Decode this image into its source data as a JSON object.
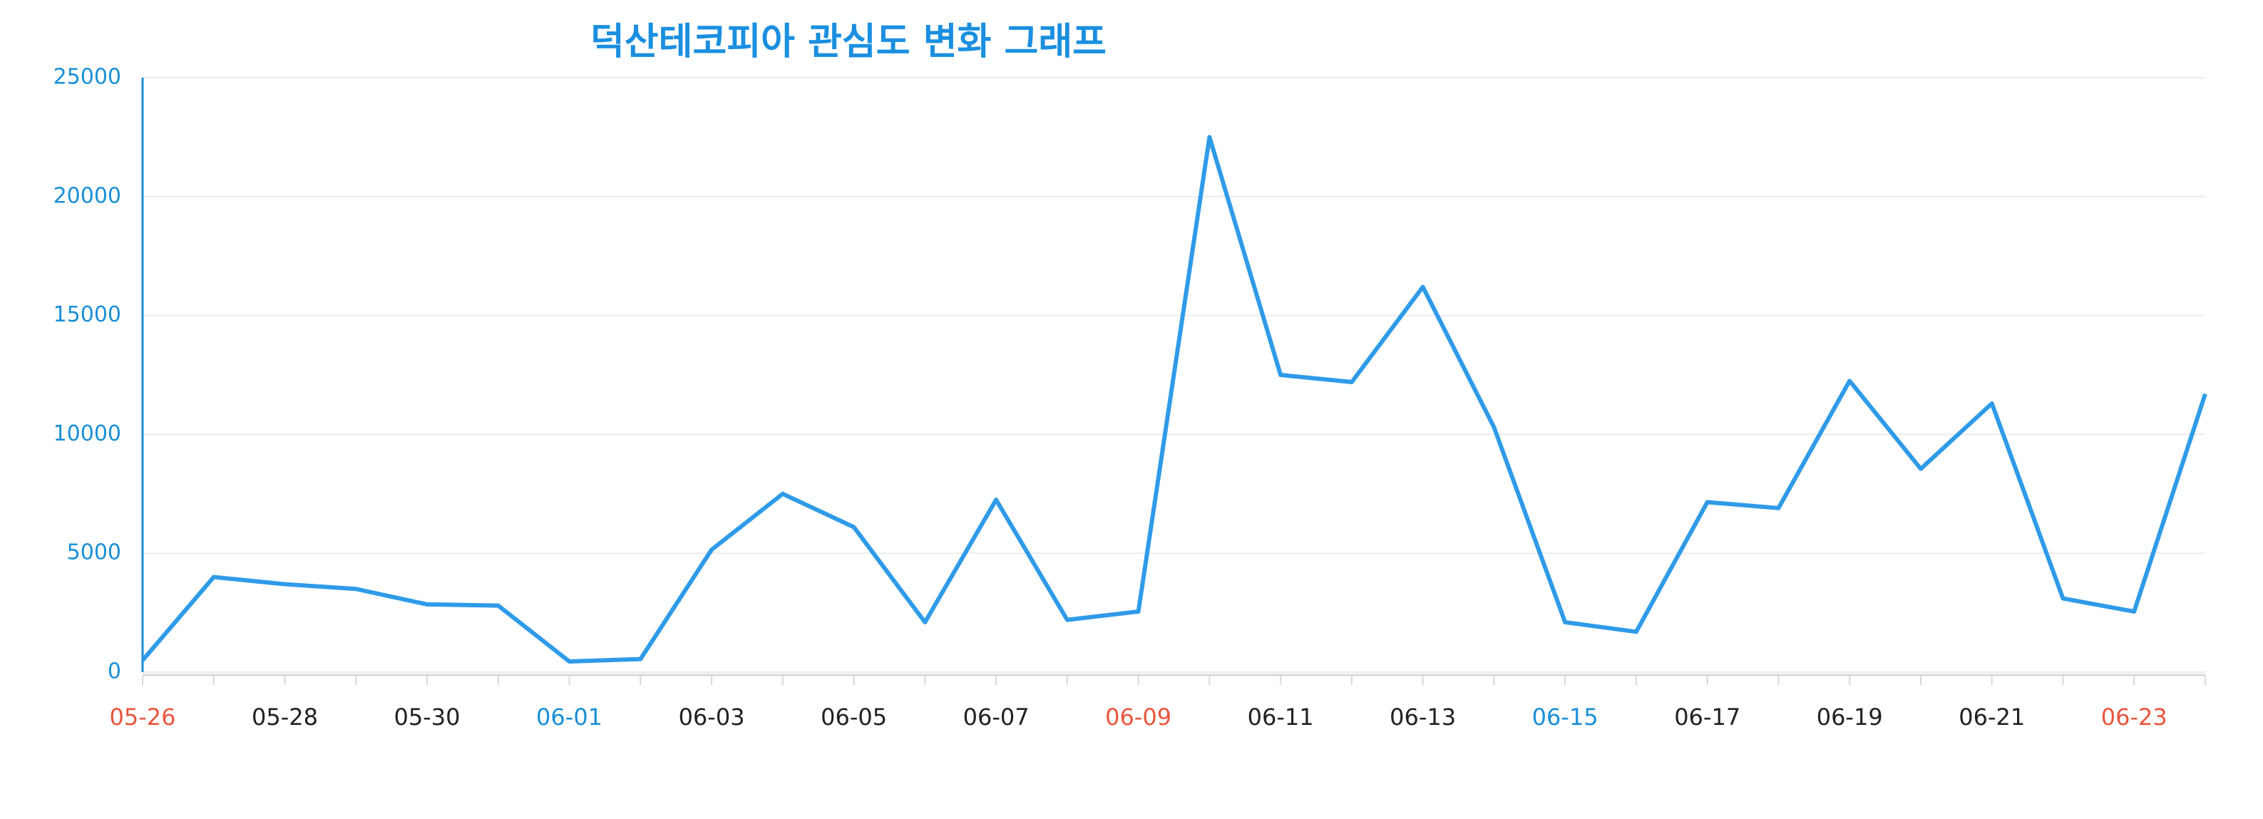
{
  "chart_data": {
    "type": "line",
    "title": "덕산테코피아 관심도 변화 그래프",
    "categories": [
      "05-26",
      null,
      "05-28",
      null,
      "05-30",
      null,
      "06-01",
      null,
      "06-03",
      null,
      "06-05",
      null,
      "06-07",
      null,
      "06-09",
      null,
      "06-11",
      null,
      "06-13",
      null,
      "06-15",
      null,
      "06-17",
      null,
      "06-19",
      null,
      "06-21",
      null,
      "06-23",
      null
    ],
    "category_colors": [
      "#e8553e",
      null,
      "#222222",
      null,
      "#222222",
      null,
      "#1a8fd6",
      null,
      "#222222",
      null,
      "#222222",
      null,
      "#222222",
      null,
      "#e8553e",
      null,
      "#222222",
      null,
      "#222222",
      null,
      "#1a8fd6",
      null,
      "#222222",
      null,
      "#222222",
      null,
      "#222222",
      null,
      "#e8553e",
      null
    ],
    "series": [
      {
        "color": "#2f9be8",
        "values": [
          500,
          4000,
          3700,
          3500,
          2850,
          2800,
          450,
          550,
          5150,
          7500,
          6100,
          2100,
          7250,
          2200,
          2550,
          22500,
          12500,
          12200,
          16200,
          10300,
          2100,
          1700,
          7150,
          6900,
          12250,
          8550,
          11300,
          3100,
          2550,
          11700
        ]
      }
    ],
    "ylim": [
      0,
      25000
    ],
    "yticks": [
      0,
      5000,
      10000,
      15000,
      20000,
      25000
    ],
    "grid": true
  }
}
